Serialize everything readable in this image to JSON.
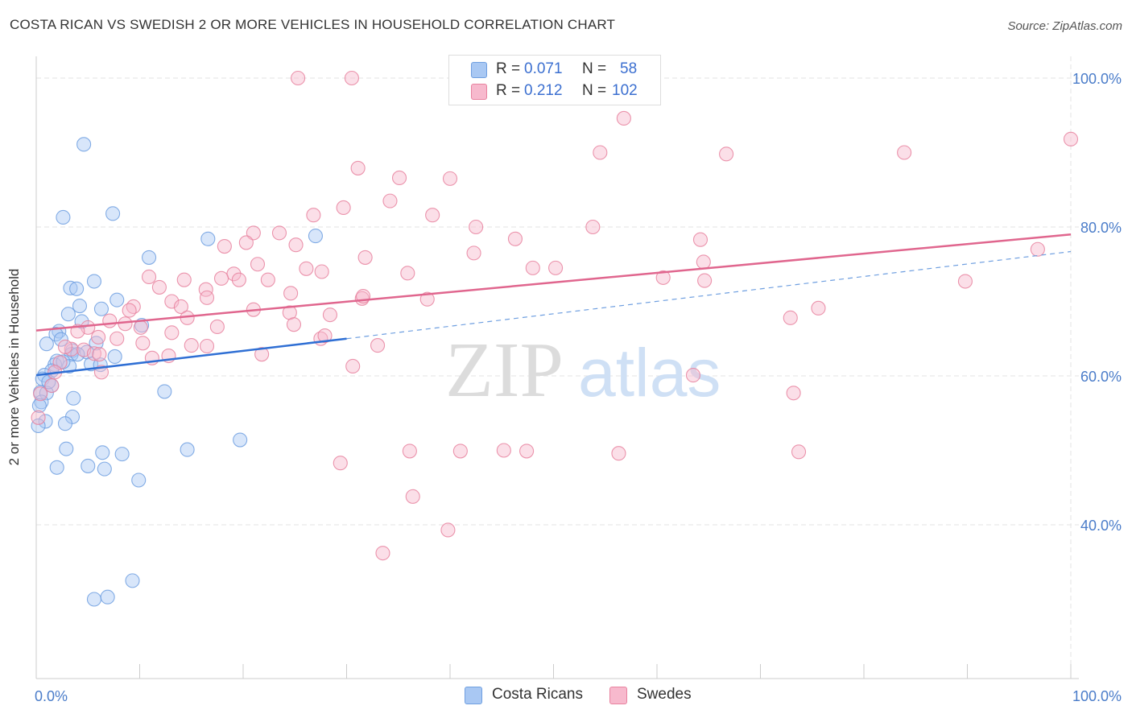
{
  "header": {
    "title": "COSTA RICAN VS SWEDISH 2 OR MORE VEHICLES IN HOUSEHOLD CORRELATION CHART",
    "source": "Source: ZipAtlas.com"
  },
  "watermark": {
    "zip": "ZIP",
    "atlas": "atlas"
  },
  "legend": {
    "rows": [
      {
        "r_label": "R =",
        "r_value": "0.071",
        "n_label": "N =",
        "n_value": "58",
        "color": "#a9c8f3"
      },
      {
        "r_label": "R =",
        "r_value": "0.212",
        "n_label": "N =",
        "n_value": "102",
        "color": "#f7b9cd"
      }
    ]
  },
  "bottom_legend": [
    {
      "label": "Costa Ricans",
      "color": "#a9c8f3"
    },
    {
      "label": "Swedes",
      "color": "#f7b9cd"
    }
  ],
  "chart_data": {
    "type": "scatter",
    "title": "COSTA RICAN VS SWEDISH 2 OR MORE VEHICLES IN HOUSEHOLD CORRELATION CHART",
    "xlabel": "",
    "ylabel": "2 or more Vehicles in Household",
    "xlim": [
      0,
      100
    ],
    "ylim": [
      22,
      103
    ],
    "x_tick_labels": [
      {
        "value": 0,
        "label": "0.0%"
      },
      {
        "value": 100,
        "label": "100.0%"
      }
    ],
    "y_tick_labels": [
      {
        "value": 40,
        "label": "40.0%"
      },
      {
        "value": 60,
        "label": "60.0%"
      },
      {
        "value": 80,
        "label": "80.0%"
      },
      {
        "value": 100,
        "label": "100.0%"
      }
    ],
    "grid": true,
    "legend_placement": "top-center",
    "series": [
      {
        "name": "Costa Ricans",
        "color": "#6f9fe0",
        "fill": "#a9c8f3",
        "trend": {
          "solid": [
            [
              0,
              60.1
            ],
            [
              30,
              65.0
            ]
          ],
          "dashed": [
            [
              30,
              65.0
            ],
            [
              100,
              76.7
            ]
          ]
        },
        "points": [
          [
            4.6,
            91.1
          ],
          [
            7.4,
            81.8
          ],
          [
            2.6,
            81.3
          ],
          [
            16.6,
            78.4
          ],
          [
            27.0,
            78.8
          ],
          [
            10.9,
            75.9
          ],
          [
            5.6,
            72.7
          ],
          [
            3.3,
            71.8
          ],
          [
            3.9,
            71.7
          ],
          [
            7.8,
            70.2
          ],
          [
            4.2,
            69.4
          ],
          [
            6.3,
            69.0
          ],
          [
            3.1,
            68.3
          ],
          [
            4.4,
            67.3
          ],
          [
            10.2,
            66.8
          ],
          [
            2.2,
            66.0
          ],
          [
            1.9,
            65.6
          ],
          [
            2.4,
            64.9
          ],
          [
            5.8,
            64.4
          ],
          [
            1.0,
            64.3
          ],
          [
            3.5,
            63.4
          ],
          [
            4.9,
            63.2
          ],
          [
            3.4,
            62.9
          ],
          [
            7.6,
            62.6
          ],
          [
            2.0,
            62.0
          ],
          [
            1.8,
            61.5
          ],
          [
            5.3,
            61.6
          ],
          [
            3.2,
            61.3
          ],
          [
            6.2,
            61.5
          ],
          [
            1.5,
            60.7
          ],
          [
            0.8,
            60.1
          ],
          [
            0.6,
            59.6
          ],
          [
            1.5,
            58.7
          ],
          [
            0.4,
            57.8
          ],
          [
            1.0,
            57.7
          ],
          [
            12.4,
            57.9
          ],
          [
            3.6,
            57.0
          ],
          [
            0.5,
            56.5
          ],
          [
            3.5,
            54.5
          ],
          [
            0.9,
            53.9
          ],
          [
            2.8,
            53.6
          ],
          [
            0.2,
            53.3
          ],
          [
            2.9,
            50.2
          ],
          [
            6.4,
            49.7
          ],
          [
            14.6,
            50.1
          ],
          [
            8.3,
            49.5
          ],
          [
            19.7,
            51.4
          ],
          [
            2.0,
            47.7
          ],
          [
            5.0,
            47.9
          ],
          [
            6.6,
            47.5
          ],
          [
            9.9,
            46.0
          ],
          [
            9.3,
            32.5
          ],
          [
            6.9,
            30.3
          ],
          [
            5.6,
            30.0
          ],
          [
            0.3,
            56.0
          ],
          [
            1.2,
            59.2
          ],
          [
            2.6,
            61.9
          ],
          [
            4.0,
            62.9
          ]
        ]
      },
      {
        "name": "Swedes",
        "color": "#e8829f",
        "fill": "#f7b9cd",
        "trend": {
          "solid": [
            [
              0,
              66.1
            ],
            [
              100,
              79.0
            ]
          ]
        },
        "points": [
          [
            25.3,
            100.0
          ],
          [
            30.5,
            100.0
          ],
          [
            56.8,
            94.6
          ],
          [
            100.0,
            91.8
          ],
          [
            54.5,
            90.0
          ],
          [
            66.7,
            89.8
          ],
          [
            83.9,
            90.0
          ],
          [
            31.1,
            87.9
          ],
          [
            35.1,
            86.6
          ],
          [
            40.0,
            86.5
          ],
          [
            34.2,
            83.5
          ],
          [
            29.7,
            82.6
          ],
          [
            26.8,
            81.6
          ],
          [
            38.3,
            81.6
          ],
          [
            42.5,
            80.0
          ],
          [
            53.8,
            80.0
          ],
          [
            21.0,
            79.2
          ],
          [
            23.5,
            79.2
          ],
          [
            20.3,
            77.9
          ],
          [
            18.2,
            77.4
          ],
          [
            25.1,
            77.6
          ],
          [
            46.3,
            78.4
          ],
          [
            64.2,
            78.3
          ],
          [
            96.8,
            77.0
          ],
          [
            42.3,
            76.5
          ],
          [
            31.8,
            75.9
          ],
          [
            35.9,
            73.8
          ],
          [
            48.0,
            74.5
          ],
          [
            26.1,
            74.4
          ],
          [
            27.6,
            74.0
          ],
          [
            21.4,
            75.0
          ],
          [
            19.1,
            73.7
          ],
          [
            17.9,
            73.1
          ],
          [
            10.9,
            73.3
          ],
          [
            14.3,
            72.9
          ],
          [
            16.4,
            71.6
          ],
          [
            19.6,
            72.9
          ],
          [
            22.4,
            72.9
          ],
          [
            50.2,
            74.5
          ],
          [
            64.5,
            75.3
          ],
          [
            60.6,
            73.2
          ],
          [
            64.6,
            72.8
          ],
          [
            89.8,
            72.7
          ],
          [
            11.9,
            71.9
          ],
          [
            24.6,
            71.1
          ],
          [
            31.5,
            70.4
          ],
          [
            31.6,
            70.7
          ],
          [
            37.8,
            70.3
          ],
          [
            16.5,
            70.5
          ],
          [
            13.1,
            70.0
          ],
          [
            14.0,
            69.3
          ],
          [
            9.4,
            69.3
          ],
          [
            21.0,
            68.9
          ],
          [
            24.5,
            68.5
          ],
          [
            28.4,
            68.2
          ],
          [
            75.6,
            69.1
          ],
          [
            9.0,
            68.8
          ],
          [
            14.6,
            67.8
          ],
          [
            7.1,
            67.4
          ],
          [
            8.6,
            67.0
          ],
          [
            10.1,
            66.5
          ],
          [
            17.5,
            66.6
          ],
          [
            5.0,
            66.5
          ],
          [
            4.0,
            66.0
          ],
          [
            13.1,
            65.8
          ],
          [
            7.8,
            65.0
          ],
          [
            6.0,
            65.2
          ],
          [
            10.3,
            64.4
          ],
          [
            15.0,
            64.1
          ],
          [
            16.5,
            64.0
          ],
          [
            24.9,
            66.9
          ],
          [
            27.5,
            65.0
          ],
          [
            27.9,
            65.4
          ],
          [
            33.0,
            64.1
          ],
          [
            72.9,
            67.8
          ],
          [
            3.4,
            63.6
          ],
          [
            4.6,
            63.5
          ],
          [
            5.6,
            63.0
          ],
          [
            11.2,
            62.4
          ],
          [
            12.8,
            62.7
          ],
          [
            21.8,
            62.9
          ],
          [
            30.6,
            61.3
          ],
          [
            2.3,
            61.8
          ],
          [
            1.8,
            60.5
          ],
          [
            6.3,
            60.5
          ],
          [
            63.5,
            60.1
          ],
          [
            73.2,
            57.7
          ],
          [
            36.1,
            49.9
          ],
          [
            41.0,
            49.9
          ],
          [
            45.2,
            50.0
          ],
          [
            47.4,
            49.9
          ],
          [
            56.3,
            49.6
          ],
          [
            73.7,
            49.8
          ],
          [
            29.4,
            48.3
          ],
          [
            36.4,
            43.8
          ],
          [
            39.8,
            39.3
          ],
          [
            33.5,
            36.2
          ],
          [
            0.2,
            54.4
          ],
          [
            0.4,
            57.6
          ],
          [
            1.5,
            58.7
          ],
          [
            2.8,
            63.9
          ],
          [
            6.1,
            62.9
          ]
        ]
      }
    ]
  }
}
